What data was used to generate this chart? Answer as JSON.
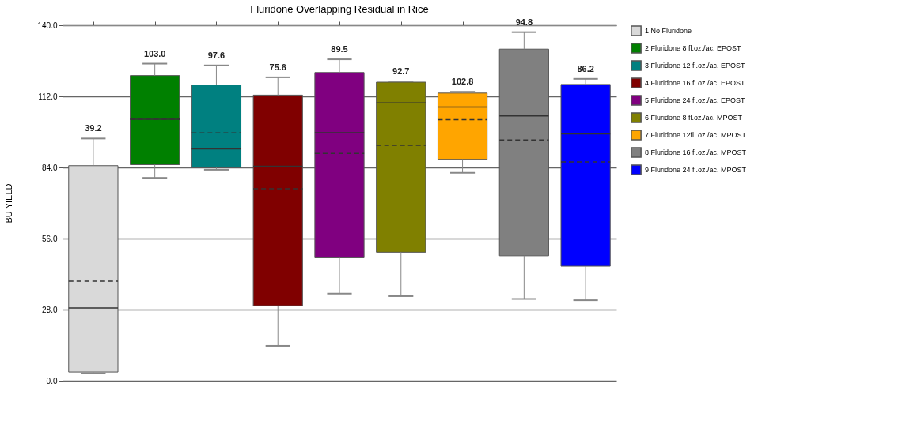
{
  "chart_data": {
    "type": "box",
    "title": "Fluridone Overlapping Residual in Rice",
    "ylabel": "BU YIELD",
    "categories": [
      null,
      null,
      null,
      null,
      null,
      null,
      null,
      null,
      null
    ],
    "series": [
      {
        "name": "1 No Fluridone",
        "color": "#d9d9d9",
        "boxes": [
          {
            "low": 2.9,
            "q1": 3.4,
            "median": 28.6,
            "q3": 84.7,
            "high": 95.4,
            "mean": 39.2
          },
          null,
          null,
          null,
          null,
          null,
          null,
          null,
          null
        ]
      },
      {
        "name": "2 Fluridone 8 fl.oz./ac. EPOST",
        "color": "#008000",
        "boxes": [
          null,
          {
            "low": 79.9,
            "q1": 85.1,
            "median": 103.0,
            "q3": 120.2,
            "high": 124.9,
            "mean": 103.0
          },
          null,
          null,
          null,
          null,
          null,
          null,
          null
        ]
      },
      {
        "name": "3 Fluridone 12 fl.oz./ac. EPOST",
        "color": "#008080",
        "boxes": [
          null,
          null,
          {
            "low": 83.1,
            "q1": 83.9,
            "median": 91.3,
            "q3": 116.5,
            "high": 124.2,
            "mean": 97.6
          },
          null,
          null,
          null,
          null,
          null,
          null
        ]
      },
      {
        "name": "4 Fluridone 16 fl.oz./ac. EPOST",
        "color": "#800000",
        "boxes": [
          null,
          null,
          null,
          {
            "low": 13.7,
            "q1": 29.5,
            "median": 84.5,
            "q3": 112.5,
            "high": 119.5,
            "mean": 75.6
          },
          null,
          null,
          null,
          null,
          null
        ]
      },
      {
        "name": "5 Fluridone 24 fl.oz./ac. EPOST",
        "color": "#800080",
        "boxes": [
          null,
          null,
          null,
          null,
          {
            "low": 34.3,
            "q1": 48.4,
            "median": 97.7,
            "q3": 121.4,
            "high": 126.6,
            "mean": 89.5
          },
          null,
          null,
          null,
          null
        ]
      },
      {
        "name": "6 Fluridone 8 fl.oz./ac. MPOST",
        "color": "#808000",
        "boxes": [
          null,
          null,
          null,
          null,
          null,
          {
            "low": 33.3,
            "q1": 50.6,
            "median": 109.4,
            "q3": 117.6,
            "high": 117.9,
            "mean": 92.7
          },
          null,
          null,
          null
        ]
      },
      {
        "name": "7 Fluridone 12fl. oz./ac. MPOST",
        "color": "#ffa500",
        "boxes": [
          null,
          null,
          null,
          null,
          null,
          null,
          {
            "low": 81.9,
            "q1": 87.2,
            "median": 107.8,
            "q3": 113.3,
            "high": 113.8,
            "mean": 102.8
          },
          null,
          null
        ]
      },
      {
        "name": "8 Fluridone 16 fl.oz./ac. MPOST",
        "color": "#808080",
        "boxes": [
          null,
          null,
          null,
          null,
          null,
          null,
          null,
          {
            "low": 32.2,
            "q1": 49.2,
            "median": 104.3,
            "q3": 130.6,
            "high": 137.3,
            "mean": 94.8
          },
          null
        ]
      },
      {
        "name": "9 Fluridone 24 fl.oz./ac. MPOST",
        "color": "#0000ff",
        "boxes": [
          null,
          null,
          null,
          null,
          null,
          null,
          null,
          null,
          {
            "low": 31.7,
            "q1": 45.1,
            "median": 97.2,
            "q3": 116.7,
            "high": 118.9,
            "mean": 86.2
          }
        ]
      }
    ],
    "annotations": [
      {
        "text": "39.2",
        "y": 95.4
      },
      {
        "text": "103.0",
        "y": 124.9
      },
      {
        "text": "97.6",
        "y": 124.2
      },
      {
        "text": "75.6",
        "y": 119.5
      },
      {
        "text": "89.5",
        "y": 126.6
      },
      {
        "text": "92.7",
        "y": 117.9
      },
      {
        "text": "102.8",
        "y": 113.8
      },
      {
        "text": "94.8",
        "y": 137.3
      },
      {
        "text": "86.2",
        "y": 118.9
      }
    ],
    "ylim": [
      0,
      140
    ],
    "yticks": [
      {
        "value": 0,
        "label": "0.0"
      },
      {
        "value": 28,
        "label": "28.0"
      },
      {
        "value": 56,
        "label": "56.0"
      },
      {
        "value": 84,
        "label": "84.0"
      },
      {
        "value": 112,
        "label": "112.0"
      },
      {
        "value": 140,
        "label": "140.0"
      }
    ],
    "grid": "y",
    "legend": "right",
    "tick_labels": "y"
  }
}
